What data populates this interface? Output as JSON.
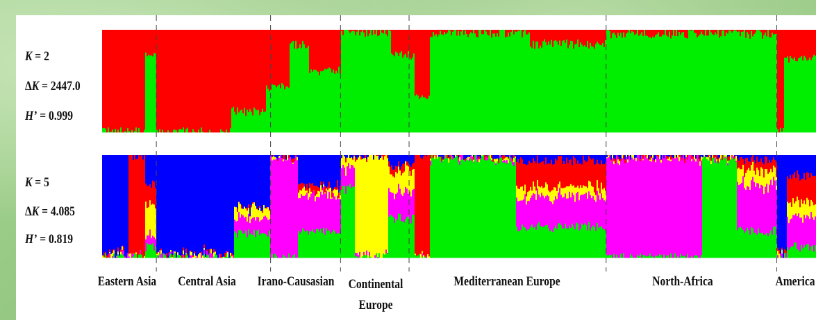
{
  "chart_data": {
    "type": "bar",
    "subtype": "stacked-admixture",
    "panels": [
      {
        "k_value": "2",
        "delta_k": "2447.0",
        "h_prime": "0.999",
        "colors": [
          "#ff0000",
          "#00ee00"
        ]
      },
      {
        "k_value": "5",
        "delta_k": "4.085",
        "h_prime": "0.819",
        "colors": [
          "#0000ff",
          "#ff0000",
          "#ffff00",
          "#ff00ff",
          "#00ee00"
        ]
      }
    ],
    "groups": [
      {
        "label": "Eastern Asia",
        "start": 0.0,
        "end": 0.076
      },
      {
        "label": "Central Asia",
        "start": 0.076,
        "end": 0.236
      },
      {
        "label": "Irano-Causasian",
        "start": 0.236,
        "end": 0.334
      },
      {
        "label": "Continental\nEurope",
        "start": 0.334,
        "end": 0.43
      },
      {
        "label": "Mediterranean Europe",
        "start": 0.43,
        "end": 0.706
      },
      {
        "label": "North-Africa",
        "start": 0.706,
        "end": 0.945
      },
      {
        "label": "America",
        "start": 0.945,
        "end": 1.0
      }
    ],
    "k2_blocks": [
      {
        "s": 0.0,
        "e": 0.06,
        "q": [
          1,
          0
        ]
      },
      {
        "s": 0.06,
        "e": 0.076,
        "q": [
          0.25,
          0.75
        ]
      },
      {
        "s": 0.076,
        "e": 0.18,
        "q": [
          1,
          0
        ]
      },
      {
        "s": 0.18,
        "e": 0.23,
        "q": [
          0.8,
          0.2
        ]
      },
      {
        "s": 0.23,
        "e": 0.262,
        "q": [
          0.55,
          0.45
        ]
      },
      {
        "s": 0.262,
        "e": 0.29,
        "q": [
          0.15,
          0.85
        ]
      },
      {
        "s": 0.29,
        "e": 0.334,
        "q": [
          0.4,
          0.6
        ]
      },
      {
        "s": 0.334,
        "e": 0.405,
        "q": [
          0.02,
          0.98
        ]
      },
      {
        "s": 0.405,
        "e": 0.438,
        "q": [
          0.25,
          0.75
        ]
      },
      {
        "s": 0.438,
        "e": 0.46,
        "q": [
          0.65,
          0.35
        ]
      },
      {
        "s": 0.46,
        "e": 0.6,
        "q": [
          0.03,
          0.97
        ]
      },
      {
        "s": 0.6,
        "e": 0.706,
        "q": [
          0.14,
          0.86
        ]
      },
      {
        "s": 0.706,
        "e": 0.945,
        "q": [
          0.04,
          0.96
        ]
      },
      {
        "s": 0.945,
        "e": 0.956,
        "q": [
          1,
          0
        ]
      },
      {
        "s": 0.956,
        "e": 1.0,
        "q": [
          0.28,
          0.72
        ]
      }
    ],
    "k5_blocks": [
      {
        "s": 0.0,
        "e": 0.037,
        "q": [
          1,
          0,
          0,
          0,
          0
        ]
      },
      {
        "s": 0.037,
        "e": 0.06,
        "q": [
          0,
          1,
          0,
          0,
          0
        ]
      },
      {
        "s": 0.06,
        "e": 0.076,
        "q": [
          0.3,
          0.2,
          0.3,
          0.1,
          0.1
        ]
      },
      {
        "s": 0.076,
        "e": 0.185,
        "q": [
          1,
          0,
          0,
          0,
          0
        ]
      },
      {
        "s": 0.185,
        "e": 0.236,
        "q": [
          0.5,
          0,
          0.1,
          0.15,
          0.25
        ]
      },
      {
        "s": 0.236,
        "e": 0.275,
        "q": [
          0,
          0,
          0,
          1,
          0
        ]
      },
      {
        "s": 0.275,
        "e": 0.334,
        "q": [
          0.3,
          0.05,
          0.05,
          0.35,
          0.25
        ]
      },
      {
        "s": 0.334,
        "e": 0.355,
        "q": [
          0,
          0,
          0.1,
          0.2,
          0.7
        ]
      },
      {
        "s": 0.355,
        "e": 0.4,
        "q": [
          0,
          0,
          1,
          0,
          0
        ]
      },
      {
        "s": 0.4,
        "e": 0.438,
        "q": [
          0.1,
          0.05,
          0.2,
          0.25,
          0.4
        ]
      },
      {
        "s": 0.438,
        "e": 0.46,
        "q": [
          0,
          1,
          0,
          0,
          0
        ]
      },
      {
        "s": 0.46,
        "e": 0.58,
        "q": [
          0,
          0,
          0,
          0,
          1
        ]
      },
      {
        "s": 0.58,
        "e": 0.706,
        "q": [
          0.05,
          0.25,
          0.1,
          0.3,
          0.3
        ]
      },
      {
        "s": 0.706,
        "e": 0.84,
        "q": [
          0,
          0,
          0,
          1,
          0
        ]
      },
      {
        "s": 0.84,
        "e": 0.89,
        "q": [
          0,
          0,
          0,
          0,
          1
        ]
      },
      {
        "s": 0.89,
        "e": 0.945,
        "q": [
          0.05,
          0.1,
          0.15,
          0.45,
          0.25
        ]
      },
      {
        "s": 0.945,
        "e": 0.96,
        "q": [
          1,
          0,
          0,
          0,
          0
        ]
      },
      {
        "s": 0.96,
        "e": 1.0,
        "q": [
          0.2,
          0.25,
          0.15,
          0.3,
          0.1
        ]
      }
    ]
  }
}
